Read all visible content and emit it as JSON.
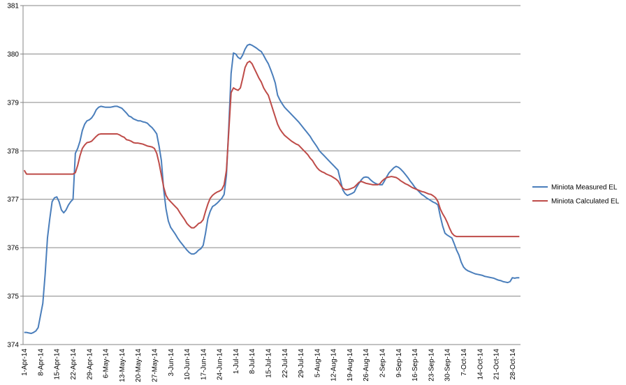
{
  "chart_data": {
    "type": "line",
    "categories": [
      "1-Apr-14",
      null,
      null,
      null,
      null,
      null,
      null,
      "8-Apr-14",
      null,
      null,
      null,
      null,
      null,
      null,
      "15-Apr-14",
      null,
      null,
      null,
      null,
      null,
      null,
      "22-Apr-14",
      null,
      null,
      null,
      null,
      null,
      null,
      "29-Apr-14",
      null,
      null,
      null,
      null,
      null,
      null,
      "6-May-14",
      null,
      null,
      null,
      null,
      null,
      null,
      "13-May-14",
      null,
      null,
      null,
      null,
      null,
      null,
      "20-May-14",
      null,
      null,
      null,
      null,
      null,
      null,
      "27-May-14",
      null,
      null,
      null,
      null,
      null,
      null,
      "3-Jun-14",
      null,
      null,
      null,
      null,
      null,
      null,
      "10-Jun-14",
      null,
      null,
      null,
      null,
      null,
      null,
      "17-Jun-14",
      null,
      null,
      null,
      null,
      null,
      null,
      "24-Jun-14",
      null,
      null,
      null,
      null,
      null,
      null,
      "1-Jul-14",
      null,
      null,
      null,
      null,
      null,
      null,
      "8-Jul-14",
      null,
      null,
      null,
      null,
      null,
      null,
      "15-Jul-14",
      null,
      null,
      null,
      null,
      null,
      null,
      "22-Jul-14",
      null,
      null,
      null,
      null,
      null,
      null,
      "29-Jul-14",
      null,
      null,
      null,
      null,
      null,
      null,
      "5-Aug-14",
      null,
      null,
      null,
      null,
      null,
      null,
      "12-Aug-14",
      null,
      null,
      null,
      null,
      null,
      null,
      "19-Aug-14",
      null,
      null,
      null,
      null,
      null,
      null,
      "26-Aug-14",
      null,
      null,
      null,
      null,
      null,
      null,
      "2-Sep-14",
      null,
      null,
      null,
      null,
      null,
      null,
      "9-Sep-14",
      null,
      null,
      null,
      null,
      null,
      null,
      "16-Sep-14",
      null,
      null,
      null,
      null,
      null,
      null,
      "23-Sep-14",
      null,
      null,
      null,
      null,
      null,
      null,
      "30-Sep-14",
      null,
      null,
      null,
      null,
      null,
      null,
      "7-Oct-14",
      null,
      null,
      null,
      null,
      null,
      null,
      "14-Oct-14",
      null,
      null,
      null,
      null,
      null,
      null,
      "21-Oct-14",
      null,
      null,
      null,
      null,
      null,
      null,
      "28-Oct-14",
      null,
      null,
      null
    ],
    "series": [
      {
        "name": "Miniota Measured EL",
        "color": "#4a7ebb",
        "values": [
          374.25,
          374.25,
          374.24,
          374.23,
          374.25,
          374.28,
          374.35,
          374.6,
          374.85,
          375.45,
          376.2,
          376.6,
          376.95,
          377.03,
          377.05,
          376.95,
          376.78,
          376.72,
          376.78,
          376.88,
          376.95,
          377.0,
          377.95,
          378.05,
          378.2,
          378.42,
          378.55,
          378.62,
          378.64,
          378.68,
          378.75,
          378.85,
          378.9,
          378.92,
          378.91,
          378.9,
          378.9,
          378.9,
          378.91,
          378.92,
          378.92,
          378.9,
          378.88,
          378.83,
          378.78,
          378.72,
          378.7,
          378.66,
          378.64,
          378.62,
          378.62,
          378.6,
          378.59,
          378.57,
          378.52,
          378.48,
          378.42,
          378.35,
          378.1,
          377.8,
          377.2,
          376.8,
          376.55,
          376.42,
          376.35,
          376.28,
          376.2,
          376.13,
          376.07,
          376.01,
          375.95,
          375.9,
          375.87,
          375.87,
          375.9,
          375.95,
          375.98,
          376.05,
          376.3,
          376.6,
          376.75,
          376.85,
          376.88,
          376.92,
          376.97,
          377.02,
          377.1,
          377.5,
          378.5,
          379.6,
          380.02,
          380.0,
          379.93,
          379.9,
          379.98,
          380.1,
          380.18,
          380.2,
          380.18,
          380.15,
          380.12,
          380.08,
          380.05,
          379.97,
          379.88,
          379.8,
          379.68,
          379.55,
          379.4,
          379.15,
          379.05,
          378.97,
          378.9,
          378.85,
          378.8,
          378.75,
          378.7,
          378.65,
          378.6,
          378.54,
          378.48,
          378.42,
          378.36,
          378.3,
          378.22,
          378.15,
          378.08,
          378.0,
          377.95,
          377.9,
          377.85,
          377.8,
          377.75,
          377.7,
          377.65,
          377.6,
          377.4,
          377.2,
          377.12,
          377.08,
          377.1,
          377.12,
          377.15,
          377.25,
          377.33,
          377.4,
          377.45,
          377.46,
          377.45,
          377.4,
          377.36,
          377.33,
          377.31,
          377.3,
          377.3,
          377.38,
          377.47,
          377.55,
          377.6,
          377.65,
          377.68,
          377.66,
          377.62,
          377.57,
          377.51,
          377.45,
          377.38,
          377.32,
          377.25,
          377.2,
          377.15,
          377.1,
          377.07,
          377.03,
          377.0,
          376.97,
          376.94,
          376.92,
          376.88,
          376.65,
          376.45,
          376.3,
          376.26,
          376.23,
          376.2,
          376.08,
          375.95,
          375.85,
          375.7,
          375.6,
          375.55,
          375.52,
          375.5,
          375.48,
          375.46,
          375.45,
          375.44,
          375.43,
          375.41,
          375.4,
          375.39,
          375.38,
          375.37,
          375.35,
          375.33,
          375.32,
          375.3,
          375.29,
          375.28,
          375.3,
          375.38,
          375.37,
          375.38,
          375.38
        ]
      },
      {
        "name": "Miniota Calculated EL",
        "color": "#be4b48",
        "values": [
          377.6,
          377.52,
          377.52,
          377.52,
          377.52,
          377.52,
          377.52,
          377.52,
          377.52,
          377.52,
          377.52,
          377.52,
          377.52,
          377.52,
          377.52,
          377.52,
          377.52,
          377.52,
          377.52,
          377.52,
          377.52,
          377.52,
          377.55,
          377.7,
          377.9,
          378.05,
          378.12,
          378.17,
          378.18,
          378.2,
          378.25,
          378.3,
          378.34,
          378.35,
          378.35,
          378.35,
          378.35,
          378.35,
          378.35,
          378.35,
          378.35,
          378.33,
          378.3,
          378.28,
          378.23,
          378.22,
          378.2,
          378.17,
          378.16,
          378.16,
          378.15,
          378.14,
          378.12,
          378.1,
          378.09,
          378.08,
          378.05,
          377.95,
          377.75,
          377.5,
          377.25,
          377.08,
          377.0,
          376.95,
          376.9,
          376.85,
          376.8,
          376.72,
          376.65,
          376.58,
          376.5,
          376.45,
          376.41,
          376.41,
          376.45,
          376.5,
          376.52,
          376.58,
          376.75,
          376.9,
          377.02,
          377.08,
          377.12,
          377.15,
          377.17,
          377.2,
          377.3,
          377.6,
          378.4,
          379.2,
          379.3,
          379.27,
          379.25,
          379.3,
          379.5,
          379.72,
          379.82,
          379.85,
          379.8,
          379.7,
          379.6,
          379.5,
          379.42,
          379.3,
          379.22,
          379.15,
          379.0,
          378.85,
          378.7,
          378.55,
          378.45,
          378.38,
          378.32,
          378.28,
          378.24,
          378.2,
          378.17,
          378.14,
          378.12,
          378.07,
          378.02,
          377.97,
          377.92,
          377.85,
          377.8,
          377.72,
          377.65,
          377.6,
          377.57,
          377.55,
          377.52,
          377.5,
          377.48,
          377.45,
          377.42,
          377.38,
          377.3,
          377.23,
          377.2,
          377.2,
          377.21,
          377.23,
          377.25,
          377.3,
          377.35,
          377.37,
          377.35,
          377.33,
          377.32,
          377.31,
          377.3,
          377.3,
          377.3,
          377.32,
          377.38,
          377.42,
          377.45,
          377.46,
          377.47,
          377.46,
          377.45,
          377.42,
          377.38,
          377.35,
          377.32,
          377.3,
          377.27,
          377.24,
          377.22,
          377.2,
          377.18,
          377.16,
          377.15,
          377.13,
          377.11,
          377.1,
          377.07,
          377.03,
          376.95,
          376.8,
          376.7,
          376.62,
          376.52,
          376.4,
          376.3,
          376.25,
          376.23,
          376.23,
          376.23,
          376.23,
          376.23,
          376.23,
          376.23,
          376.23,
          376.23,
          376.23,
          376.23,
          376.23,
          376.23,
          376.23,
          376.23,
          376.23,
          376.23,
          376.23,
          376.23,
          376.23,
          376.23,
          376.23,
          376.23,
          376.23,
          376.23,
          376.23,
          376.23,
          376.23
        ]
      }
    ],
    "ylim": [
      374,
      381
    ],
    "yticks": [
      374,
      375,
      376,
      377,
      378,
      379,
      380,
      381
    ],
    "grid": true,
    "legend": "right"
  }
}
